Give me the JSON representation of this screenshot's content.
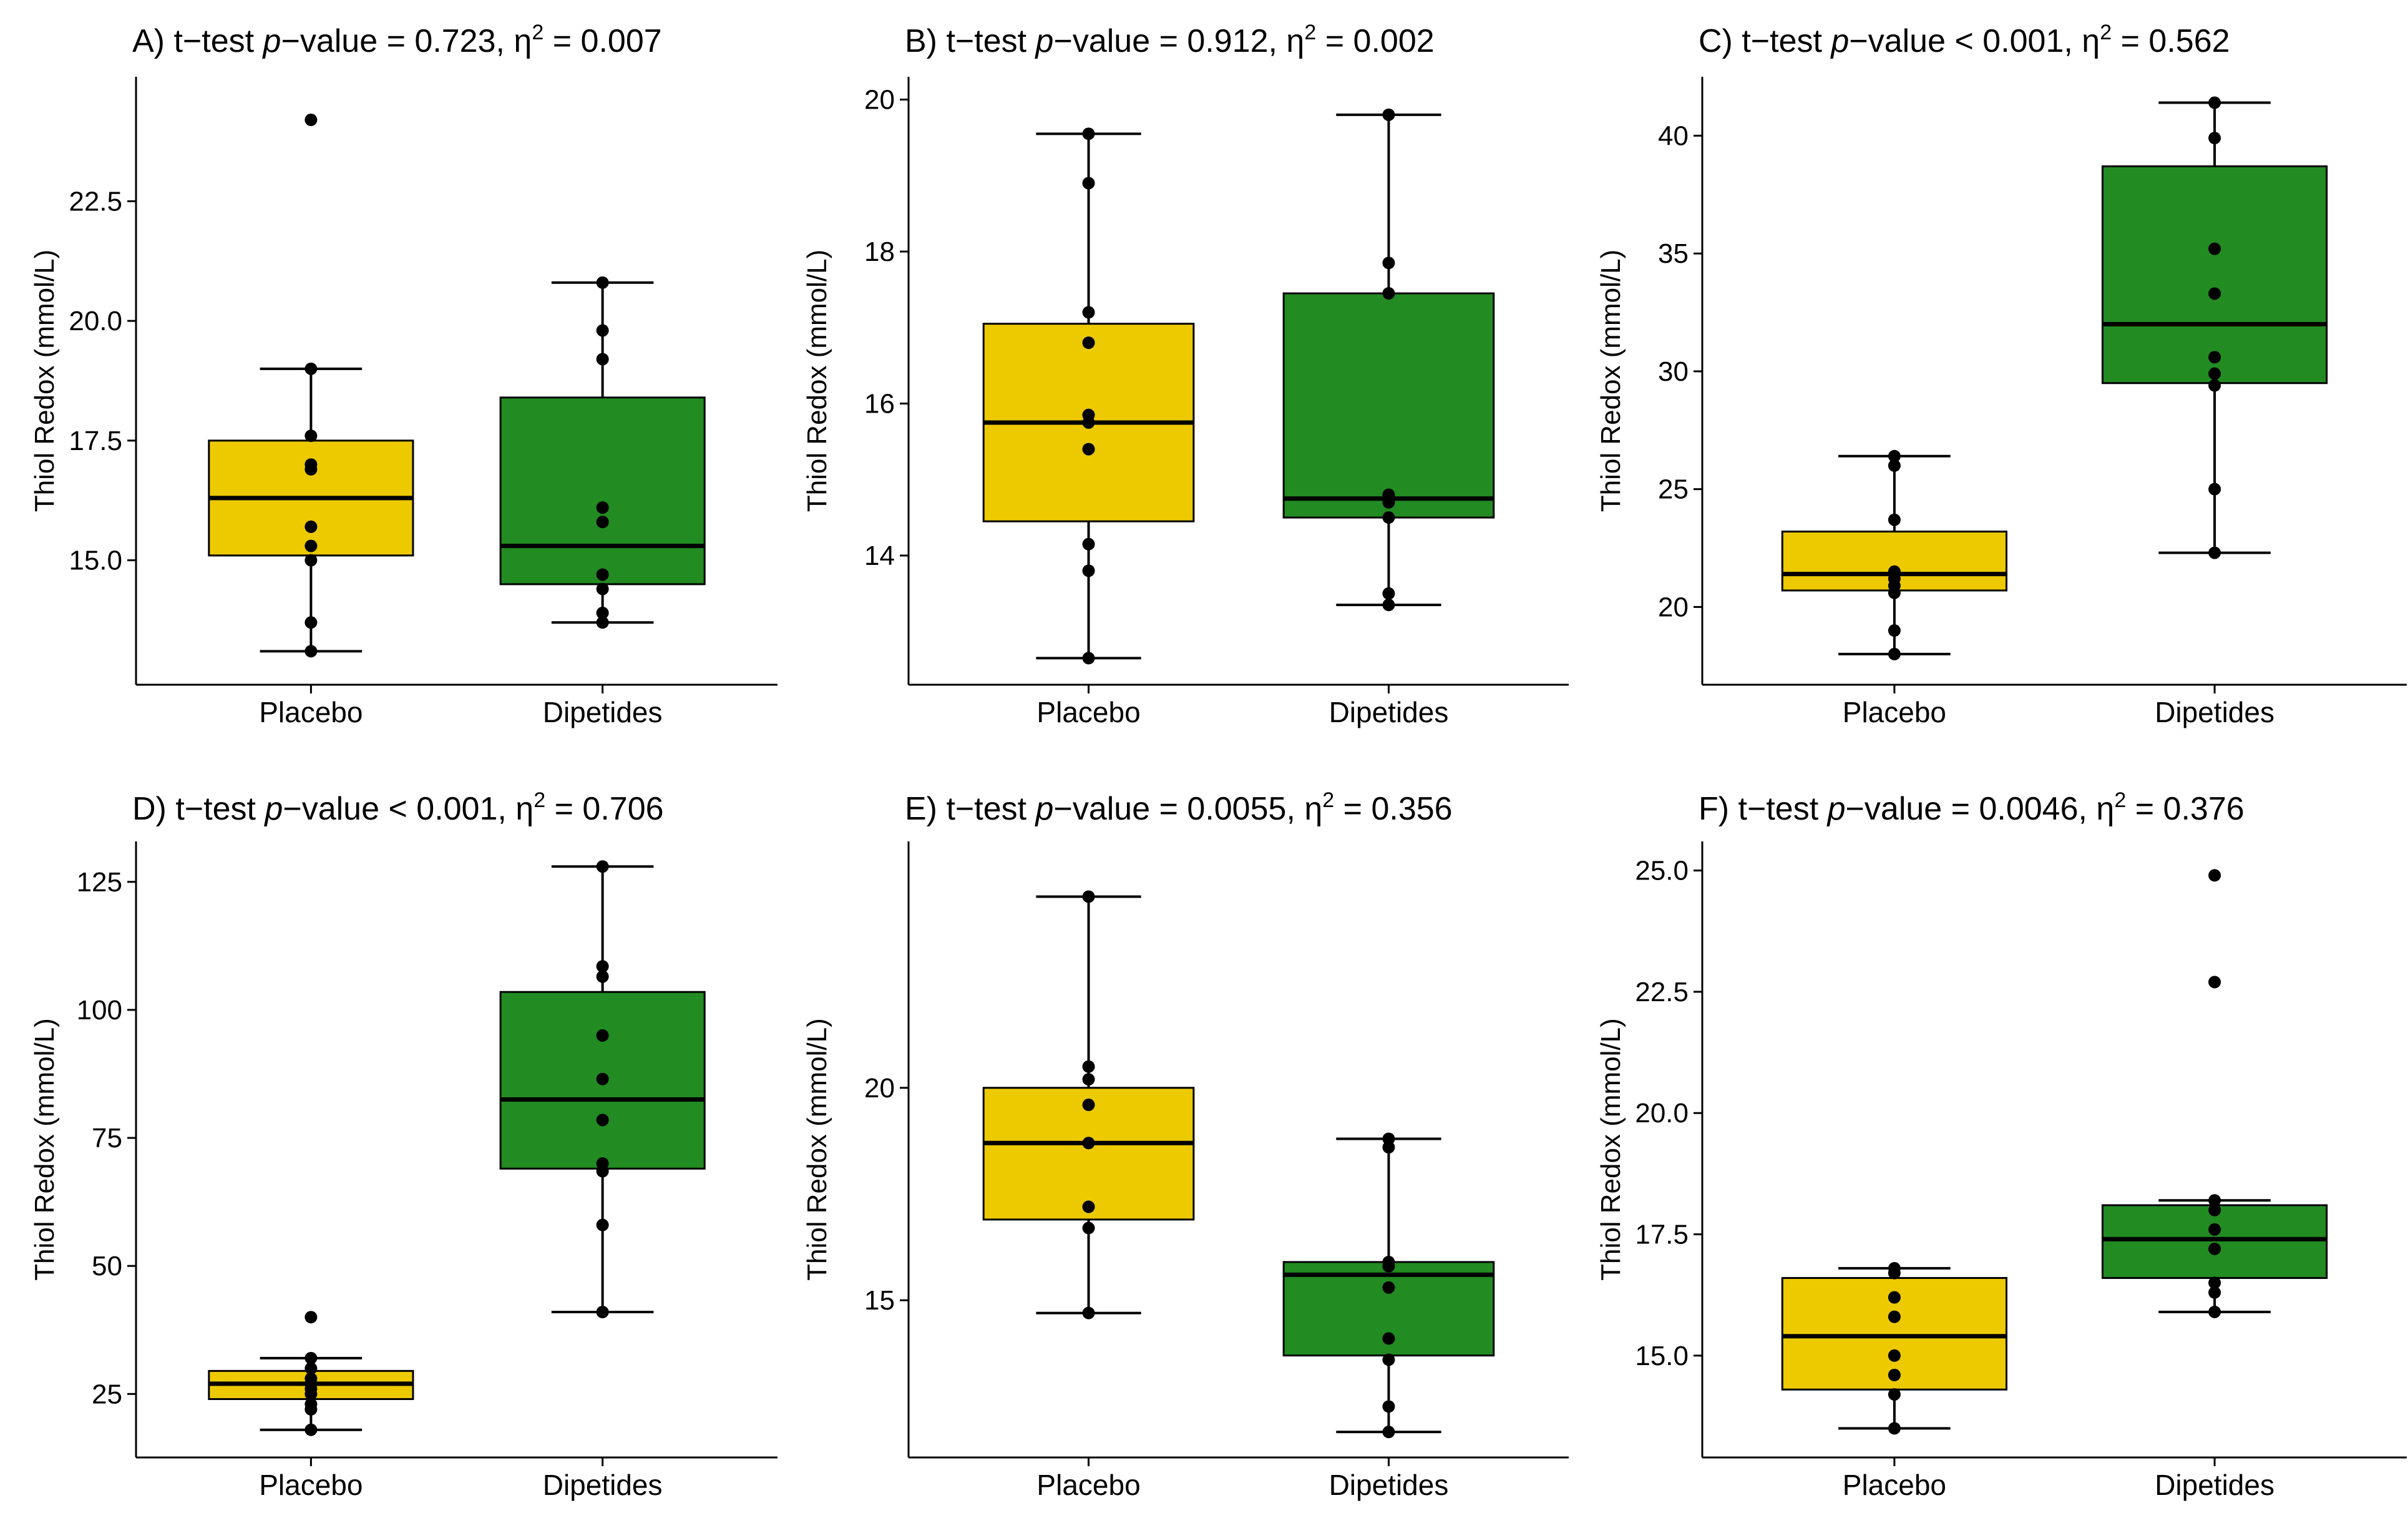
{
  "colors": {
    "placebo": "#EDC900",
    "dipetides": "#228B22",
    "points": "#000000",
    "axis": "#000000"
  },
  "chart_data": [
    {
      "type": "box",
      "panel": "A",
      "title": {
        "prefix": "A) t−test ",
        "pword": "p",
        "mid": "−value = 0.723, η",
        "sup": "2",
        "suffix": " = 0.007"
      },
      "ylabel": "Thiol Redox (mmol/L)",
      "xlabel": "",
      "categories": [
        "Placebo",
        "Dipetides"
      ],
      "ylim": [
        12.4,
        25.1
      ],
      "yticks": [
        15.0,
        17.5,
        20.0,
        22.5
      ],
      "ytick_labels": [
        "15.0",
        "17.5",
        "20.0",
        "22.5"
      ],
      "boxes": [
        {
          "name": "Placebo",
          "min": 13.1,
          "q1": 15.1,
          "median": 16.3,
          "q3": 17.5,
          "max": 19.0,
          "points": [
            24.2,
            19.0,
            17.6,
            17.0,
            16.9,
            15.7,
            15.3,
            15.0,
            13.7,
            13.1
          ]
        },
        {
          "name": "Dipetides",
          "min": 13.7,
          "q1": 14.5,
          "median": 15.3,
          "q3": 18.4,
          "max": 20.8,
          "points": [
            20.8,
            19.8,
            19.2,
            16.1,
            15.8,
            14.7,
            14.4,
            13.9,
            13.7
          ]
        }
      ]
    },
    {
      "type": "box",
      "panel": "B",
      "title": {
        "prefix": "B) t−test ",
        "pword": "p",
        "mid": "−value = 0.912, η",
        "sup": "2",
        "suffix": " = 0.002"
      },
      "ylabel": "Thiol Redox (mmol/L)",
      "xlabel": "",
      "categories": [
        "Placebo",
        "Dipetides"
      ],
      "ylim": [
        12.3,
        20.3
      ],
      "yticks": [
        14,
        16,
        18,
        20
      ],
      "ytick_labels": [
        "14",
        "16",
        "18",
        "20"
      ],
      "boxes": [
        {
          "name": "Placebo",
          "min": 12.65,
          "q1": 14.45,
          "median": 15.75,
          "q3": 17.05,
          "max": 19.55,
          "points": [
            19.55,
            18.9,
            17.2,
            16.8,
            15.85,
            15.75,
            15.4,
            14.15,
            13.8,
            12.65
          ]
        },
        {
          "name": "Dipetides",
          "min": 13.35,
          "q1": 14.5,
          "median": 14.75,
          "q3": 17.45,
          "max": 19.8,
          "points": [
            19.8,
            17.85,
            17.45,
            14.8,
            14.7,
            14.5,
            13.5,
            13.35
          ]
        }
      ]
    },
    {
      "type": "box",
      "panel": "C",
      "title": {
        "prefix": "C) t−test ",
        "pword": "p",
        "mid": "−value < 0.001, η",
        "sup": "2",
        "suffix": " = 0.562"
      },
      "ylabel": "Thiol Redox (mmol/L)",
      "xlabel": "",
      "categories": [
        "Placebo",
        "Dipetides"
      ],
      "ylim": [
        16.7,
        42.5
      ],
      "yticks": [
        20,
        25,
        30,
        35,
        40
      ],
      "ytick_labels": [
        "20",
        "25",
        "30",
        "35",
        "40"
      ],
      "boxes": [
        {
          "name": "Placebo",
          "min": 18.0,
          "q1": 20.7,
          "median": 21.4,
          "q3": 23.2,
          "max": 26.4,
          "points": [
            26.4,
            26.0,
            23.7,
            21.5,
            21.2,
            20.9,
            20.6,
            19.0,
            18.0
          ]
        },
        {
          "name": "Dipetides",
          "min": 22.3,
          "q1": 29.5,
          "median": 32.0,
          "q3": 38.7,
          "max": 41.4,
          "points": [
            41.4,
            39.9,
            35.2,
            33.3,
            30.6,
            29.9,
            29.4,
            25.0,
            22.3
          ]
        }
      ]
    },
    {
      "type": "box",
      "panel": "D",
      "title": {
        "prefix": "D) t−test ",
        "pword": "p",
        "mid": "−value < 0.001, η",
        "sup": "2",
        "suffix": " = 0.706"
      },
      "ylabel": "Thiol Redox (mmol/L)",
      "xlabel": "",
      "categories": [
        "Placebo",
        "Dipetides"
      ],
      "ylim": [
        12.6,
        132.9
      ],
      "yticks": [
        25,
        50,
        75,
        100,
        125
      ],
      "ytick_labels": [
        "25",
        "50",
        "75",
        "100",
        "125"
      ],
      "boxes": [
        {
          "name": "Placebo",
          "min": 18.0,
          "q1": 24.0,
          "median": 27.0,
          "q3": 29.5,
          "max": 32.0,
          "points": [
            40.0,
            32.0,
            30.0,
            28.0,
            27.0,
            26.0,
            25.0,
            23.0,
            22.0,
            18.0
          ]
        },
        {
          "name": "Dipetides",
          "min": 41.0,
          "q1": 69.0,
          "median": 82.5,
          "q3": 103.5,
          "max": 128.0,
          "points": [
            128.0,
            108.5,
            106.5,
            95.0,
            86.5,
            78.5,
            70.0,
            68.5,
            58.0,
            41.0
          ]
        }
      ]
    },
    {
      "type": "box",
      "panel": "E",
      "title": {
        "prefix": "E) t−test ",
        "pword": "p",
        "mid": "−value = 0.0055, η",
        "sup": "2",
        "suffix": " = 0.356"
      },
      "ylabel": "Thiol Redox (mmol/L)",
      "xlabel": "",
      "categories": [
        "Placebo",
        "Dipetides"
      ],
      "ylim": [
        11.3,
        25.8
      ],
      "yticks": [
        15,
        20
      ],
      "ytick_labels": [
        "15",
        "20"
      ],
      "boxes": [
        {
          "name": "Placebo",
          "min": 14.7,
          "q1": 16.9,
          "median": 18.7,
          "q3": 20.0,
          "max": 24.5,
          "points": [
            24.5,
            20.5,
            20.2,
            19.6,
            18.7,
            17.2,
            16.7,
            14.7
          ]
        },
        {
          "name": "Dipetides",
          "min": 11.9,
          "q1": 13.7,
          "median": 15.6,
          "q3": 15.9,
          "max": 18.8,
          "points": [
            18.8,
            18.6,
            15.9,
            15.8,
            15.3,
            14.1,
            13.6,
            12.5,
            11.9
          ]
        }
      ]
    },
    {
      "type": "box",
      "panel": "F",
      "title": {
        "prefix": "F) t−test ",
        "pword": "p",
        "mid": "−value = 0.0046, η",
        "sup": "2",
        "suffix": " = 0.376"
      },
      "ylabel": "Thiol Redox (mmol/L)",
      "xlabel": "",
      "categories": [
        "Placebo",
        "Dipetides"
      ],
      "ylim": [
        12.9,
        25.6
      ],
      "yticks": [
        15.0,
        17.5,
        20.0,
        22.5,
        25.0
      ],
      "ytick_labels": [
        "15.0",
        "17.5",
        "20.0",
        "22.5",
        "25.0"
      ],
      "boxes": [
        {
          "name": "Placebo",
          "min": 13.5,
          "q1": 14.3,
          "median": 15.4,
          "q3": 16.6,
          "max": 16.8,
          "points": [
            16.8,
            16.7,
            16.2,
            15.8,
            15.0,
            14.6,
            14.2,
            13.5
          ]
        },
        {
          "name": "Dipetides",
          "min": 15.9,
          "q1": 16.6,
          "median": 17.4,
          "q3": 18.1,
          "max": 18.2,
          "points": [
            24.9,
            22.7,
            18.2,
            18.0,
            17.6,
            17.2,
            16.5,
            16.3,
            15.9
          ]
        }
      ]
    }
  ]
}
